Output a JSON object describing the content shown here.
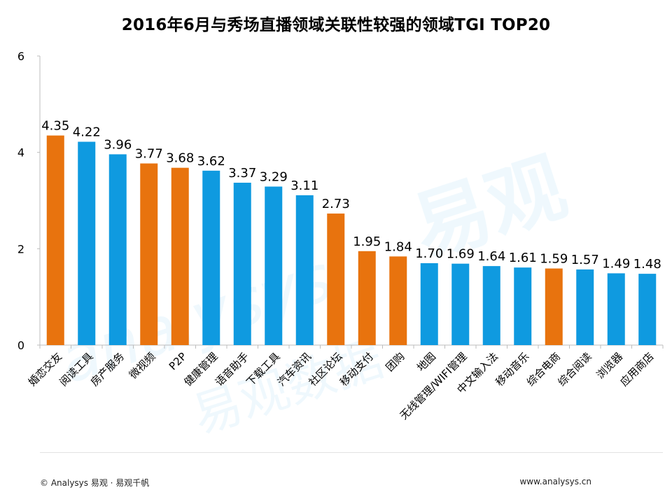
{
  "title": "2016年6月与秀场直播领域关联性较强的领域TGI TOP20",
  "watermark": {
    "brand_cn": "易观",
    "brand_en": "analysys",
    "brand_sub": "易观数据"
  },
  "footer": {
    "copyright": "© Analysys 易观 · 易观千帆",
    "website": "www.analysys.cn"
  },
  "colors": {
    "orange": "#E8730E",
    "blue": "#0F9AE0",
    "axis": "#bdbdbd"
  },
  "chart_data": {
    "type": "bar",
    "title": "2016年6月与秀场直播领域关联性较强的领域TGI TOP20",
    "xlabel": "",
    "ylabel": "",
    "ylim": [
      0,
      6
    ],
    "yticks": [
      0,
      2,
      4,
      6
    ],
    "grid": false,
    "categories": [
      "婚恋交友",
      "阅读工具",
      "房产服务",
      "微视频",
      "P2P",
      "健康管理",
      "语音助手",
      "下载工具",
      "汽车资讯",
      "社区论坛",
      "移动支付",
      "团购",
      "地图",
      "无线管理/WIFI管理",
      "中文输入法",
      "移动音乐",
      "综合电商",
      "综合阅读",
      "浏览器",
      "应用商店"
    ],
    "values": [
      4.35,
      4.22,
      3.96,
      3.77,
      3.68,
      3.62,
      3.37,
      3.29,
      3.11,
      2.73,
      1.95,
      1.84,
      1.7,
      1.69,
      1.64,
      1.61,
      1.59,
      1.57,
      1.49,
      1.48
    ],
    "value_labels": [
      "4.35",
      "4.22",
      "3.96",
      "3.77",
      "3.68",
      "3.62",
      "3.37",
      "3.29",
      "3.11",
      "2.73",
      "1.95",
      "1.84",
      "1.70",
      "1.69",
      "1.64",
      "1.61",
      "1.59",
      "1.57",
      "1.49",
      "1.48"
    ],
    "bar_colors": [
      "orange",
      "blue",
      "blue",
      "orange",
      "orange",
      "blue",
      "blue",
      "blue",
      "blue",
      "orange",
      "orange",
      "orange",
      "blue",
      "blue",
      "blue",
      "blue",
      "orange",
      "blue",
      "blue",
      "blue"
    ]
  }
}
